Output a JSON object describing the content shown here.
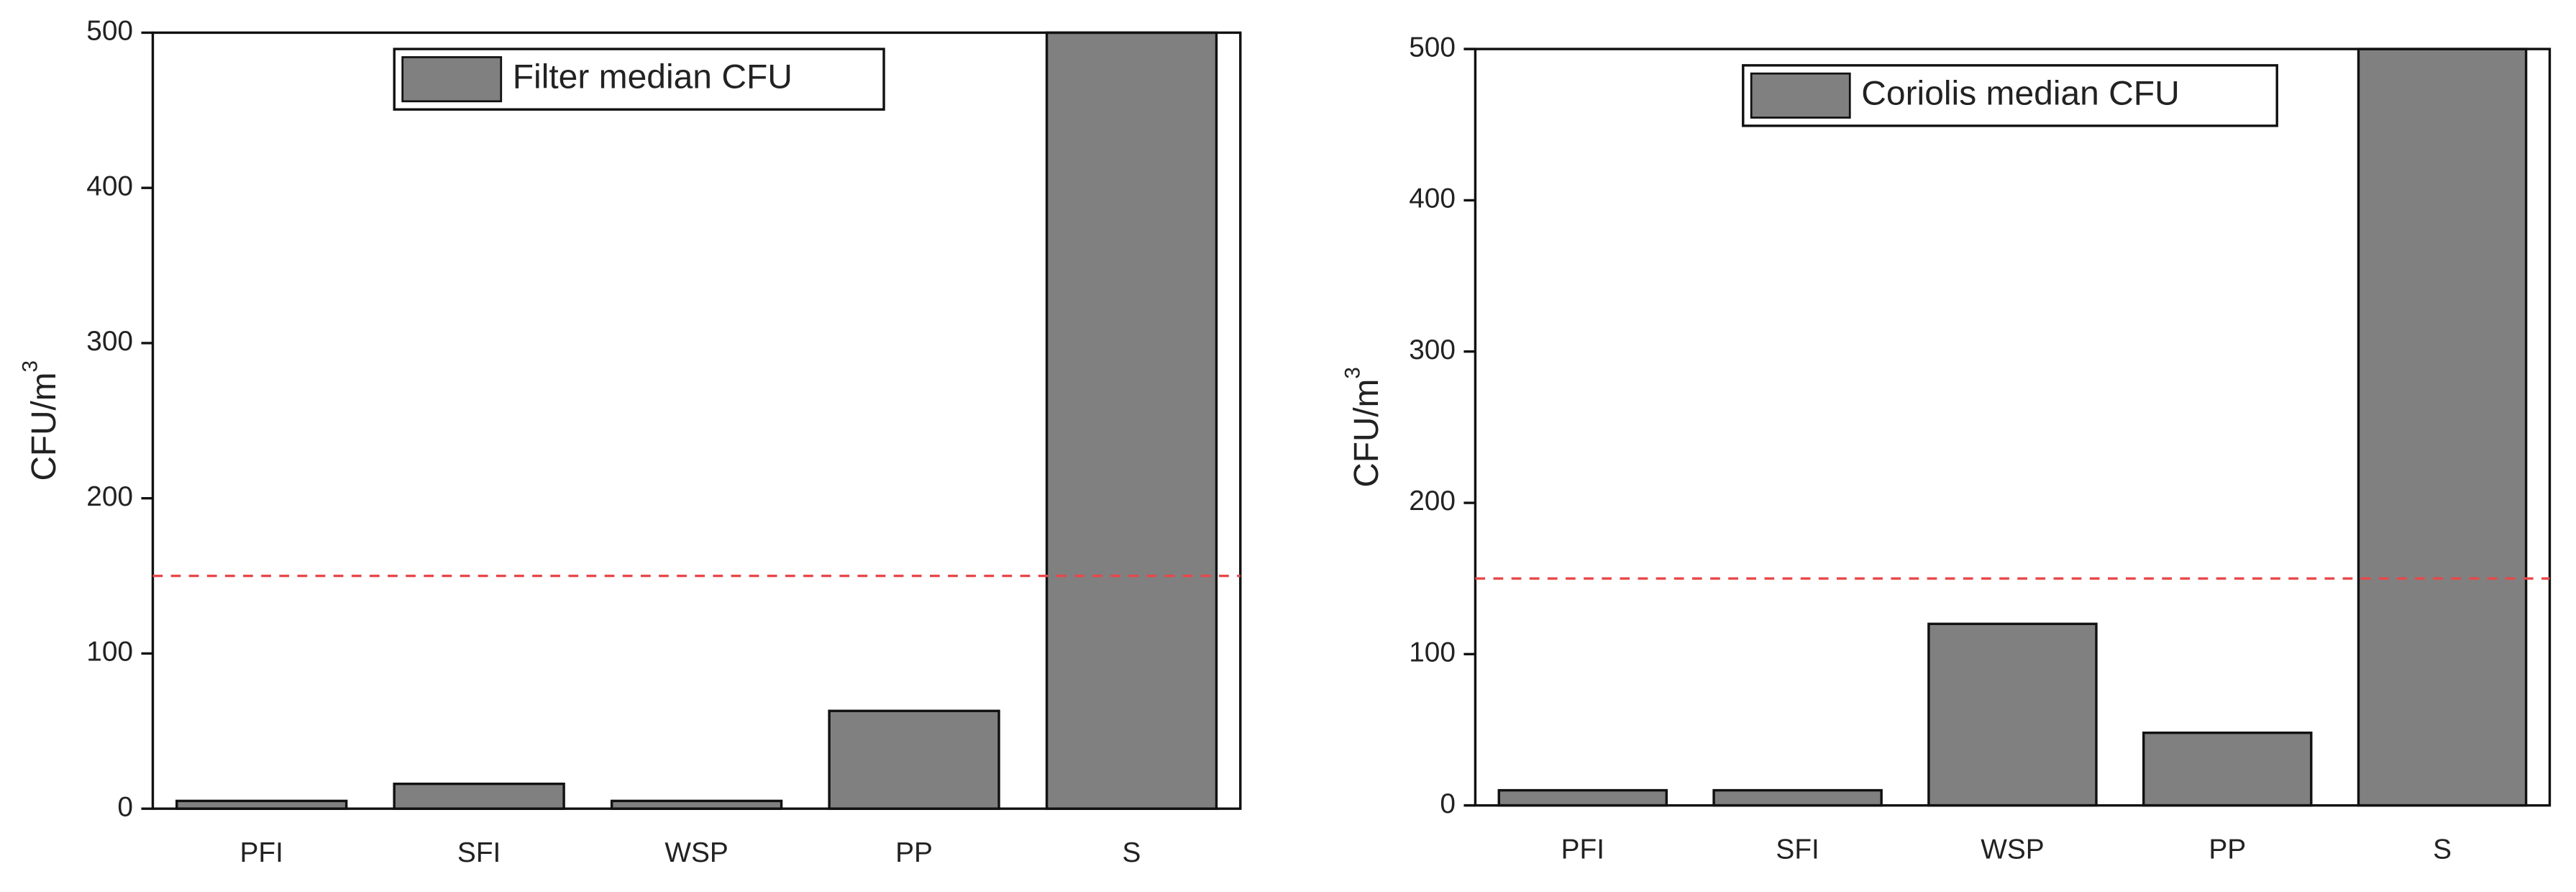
{
  "chart_data": [
    {
      "type": "bar",
      "legend_label": "Filter median CFU",
      "y_label": "CFU/m",
      "y_label_superscript": "3",
      "categories": [
        "PFI",
        "SFI",
        "WSP",
        "PP",
        "S"
      ],
      "values": [
        5,
        16,
        5,
        63,
        500
      ],
      "color": "#808080",
      "ylim": [
        0,
        500
      ],
      "yticks": [
        0,
        100,
        200,
        300,
        400,
        500
      ],
      "threshold": 150,
      "threshold_color": "#e8474a",
      "legend": "top"
    },
    {
      "type": "bar",
      "legend_label": "Coriolis median CFU",
      "y_label": "CFU/m",
      "y_label_superscript": "3",
      "categories": [
        "PFI",
        "SFI",
        "WSP",
        "PP",
        "S"
      ],
      "values": [
        10,
        10,
        120,
        48,
        500
      ],
      "color": "#808080",
      "ylim": [
        0,
        500
      ],
      "yticks": [
        0,
        100,
        200,
        300,
        400,
        500
      ],
      "threshold": 150,
      "threshold_color": "#e8474a",
      "legend": "top"
    }
  ]
}
